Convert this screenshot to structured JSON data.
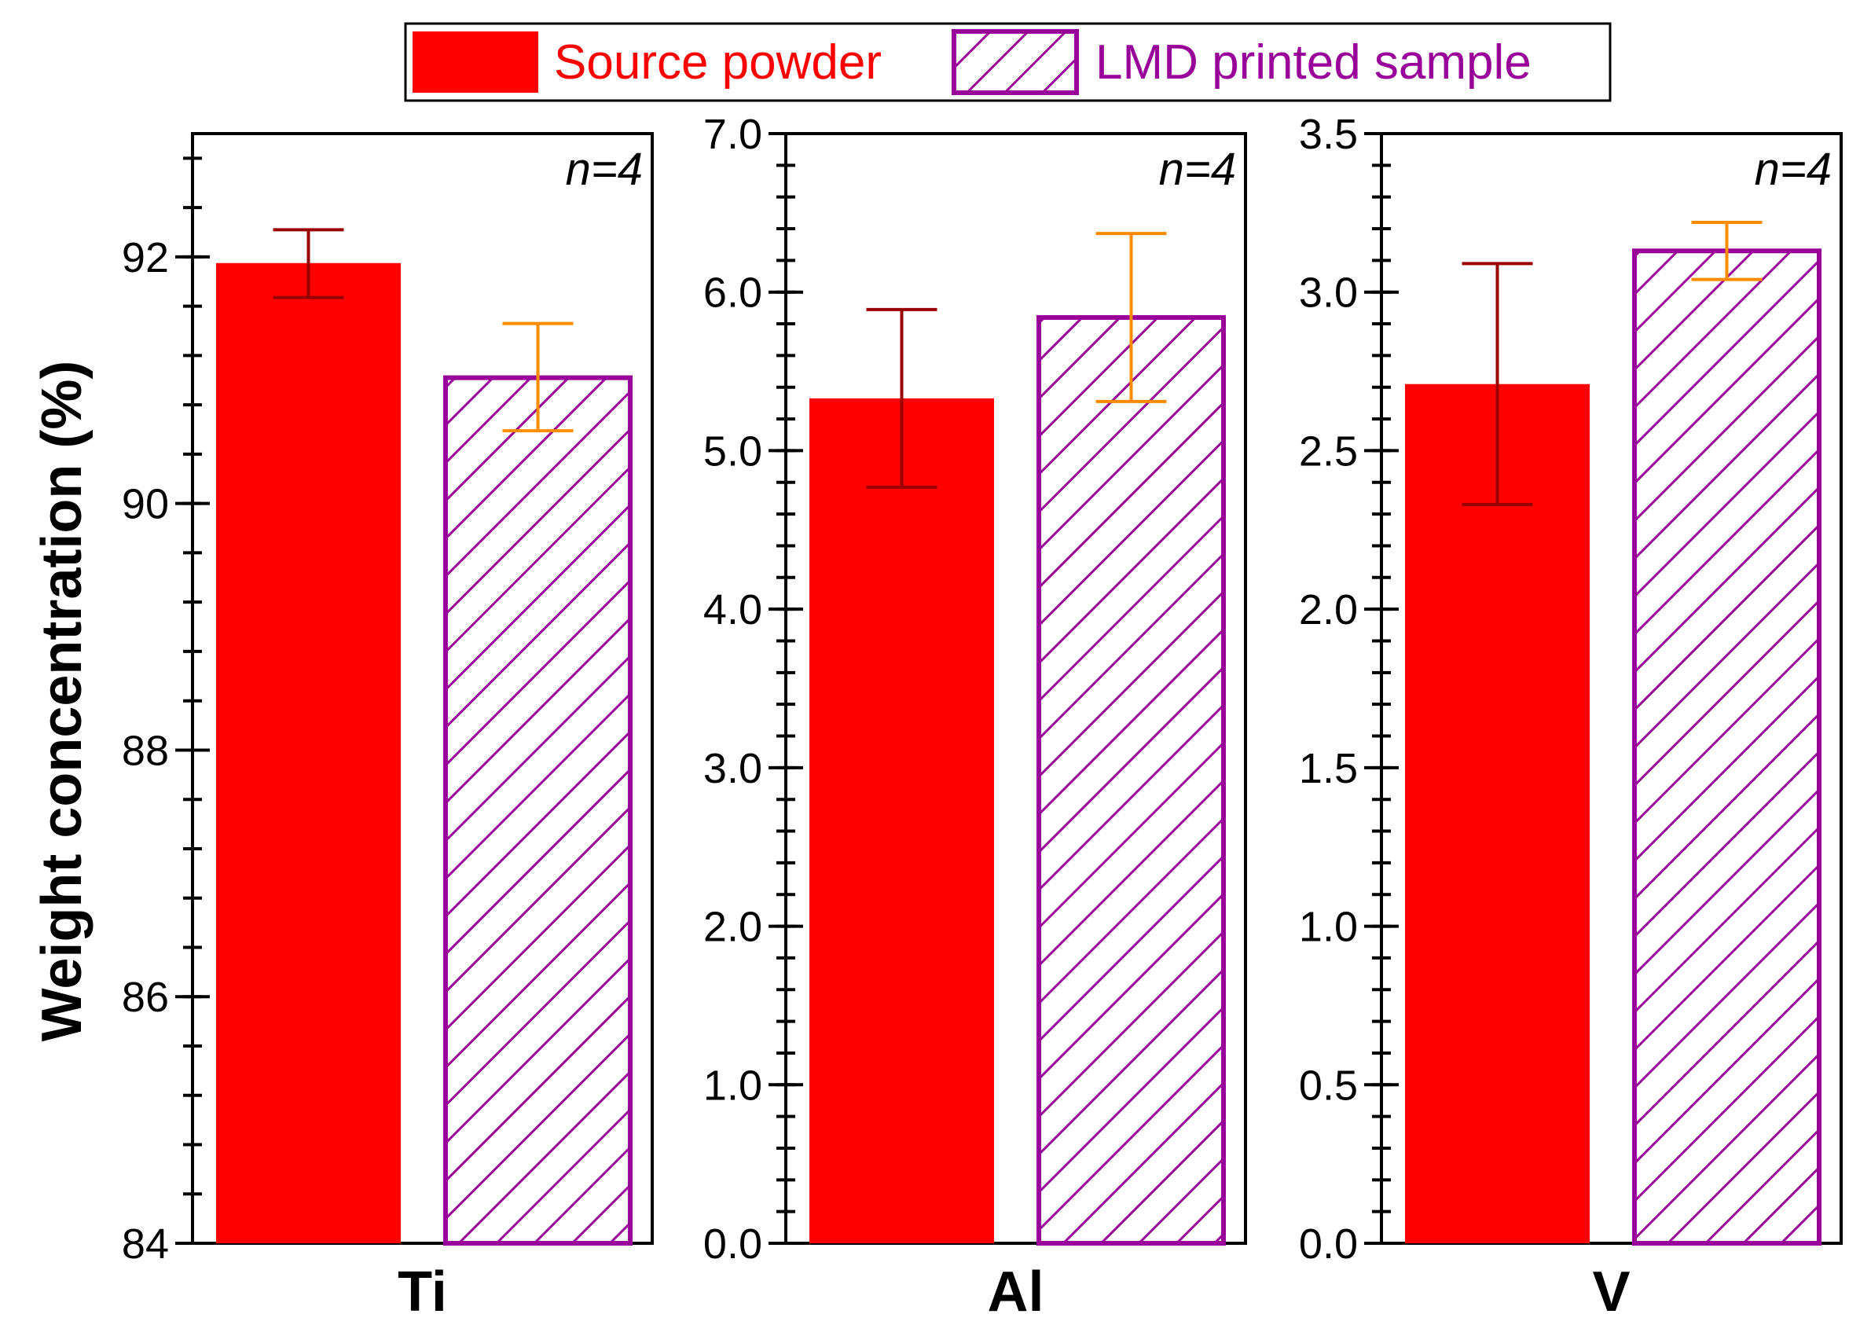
{
  "chart_data": {
    "type": "bar",
    "ylabel": "Weight concentration (%)",
    "legend": {
      "placement": "top",
      "entries": [
        {
          "name": "Source powder",
          "color": "#ff0000",
          "fill": "solid"
        },
        {
          "name": "LMD printed sample",
          "color": "#990099",
          "fill": "hatched"
        }
      ]
    },
    "panels": [
      {
        "category": "Ti",
        "annotation": "n=4",
        "ylim": [
          84,
          93
        ],
        "major_ticks": [
          84,
          86,
          88,
          90,
          92
        ],
        "tick_labels": [
          "84",
          "86",
          "88",
          "90",
          "92"
        ],
        "series": [
          {
            "name": "Source powder",
            "value": 91.95,
            "error_low": 91.67,
            "error_high": 92.22
          },
          {
            "name": "LMD printed sample",
            "value": 91.02,
            "error_low": 90.59,
            "error_high": 91.46
          }
        ]
      },
      {
        "category": "Al",
        "annotation": "n=4",
        "ylim": [
          0.0,
          7.0
        ],
        "major_ticks": [
          0.0,
          1.0,
          2.0,
          3.0,
          4.0,
          5.0,
          6.0,
          7.0
        ],
        "tick_labels": [
          "0.0",
          "1.0",
          "2.0",
          "3.0",
          "4.0",
          "5.0",
          "6.0",
          "7.0"
        ],
        "series": [
          {
            "name": "Source powder",
            "value": 5.33,
            "error_low": 4.77,
            "error_high": 5.89
          },
          {
            "name": "LMD printed sample",
            "value": 5.84,
            "error_low": 5.31,
            "error_high": 6.37
          }
        ]
      },
      {
        "category": "V",
        "annotation": "n=4",
        "ylim": [
          0.0,
          3.5
        ],
        "major_ticks": [
          0.0,
          0.5,
          1.0,
          1.5,
          2.0,
          2.5,
          3.0,
          3.5
        ],
        "tick_labels": [
          "0.0",
          "0.5",
          "1.0",
          "1.5",
          "2.0",
          "2.5",
          "3.0",
          "3.5"
        ],
        "series": [
          {
            "name": "Source powder",
            "value": 2.71,
            "error_low": 2.33,
            "error_high": 3.09
          },
          {
            "name": "LMD printed sample",
            "value": 3.13,
            "error_low": 3.04,
            "error_high": 3.22
          }
        ]
      }
    ],
    "colors": {
      "source_fill": "#ff0000",
      "source_error": "#990000",
      "lmd_stroke": "#990099",
      "lmd_error": "#ff8c00"
    }
  }
}
